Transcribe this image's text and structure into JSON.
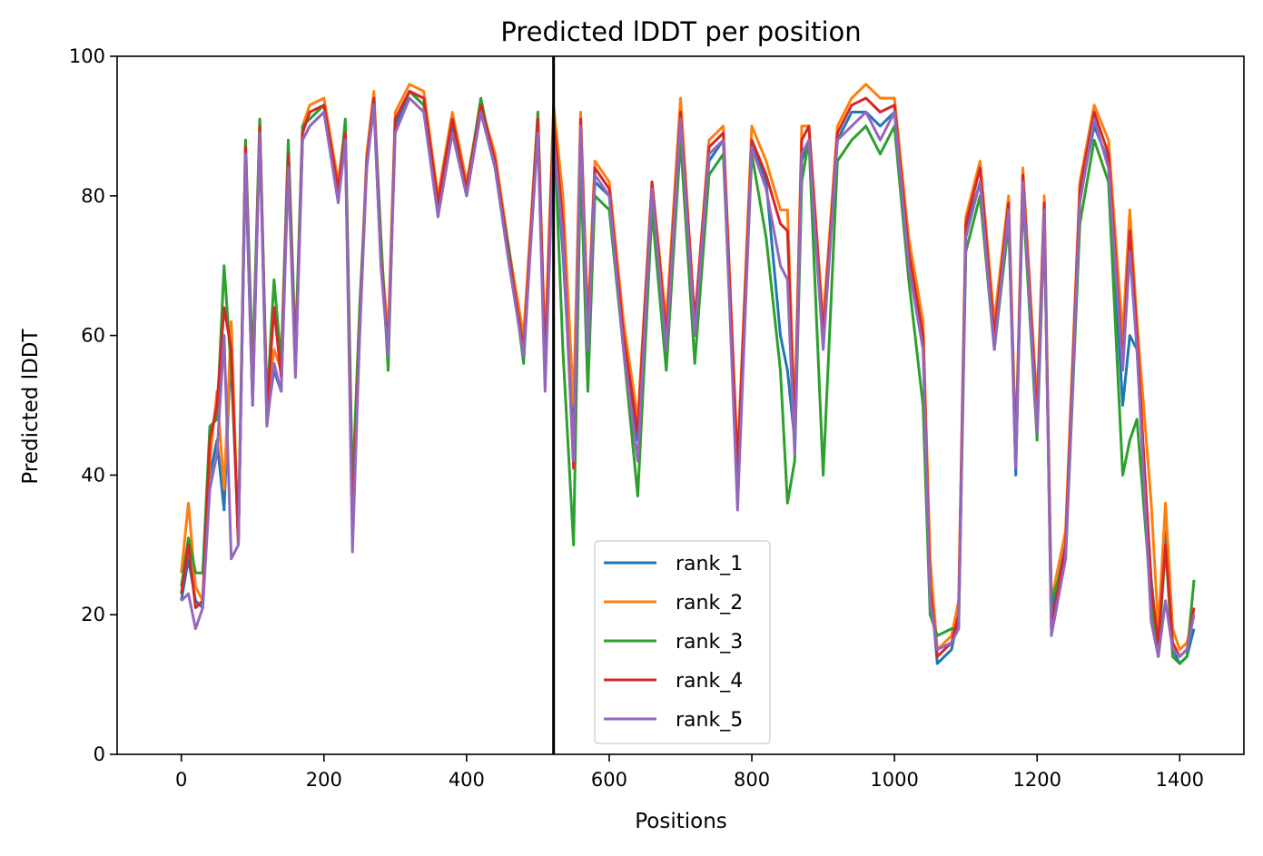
{
  "chart_data": {
    "type": "line",
    "title": "Predicted lDDT per position",
    "xlabel": "Positions",
    "ylabel": "Predicted lDDT",
    "xlim": [
      -90,
      1490
    ],
    "ylim": [
      0,
      100
    ],
    "xticks": [
      0,
      200,
      400,
      600,
      800,
      1000,
      1200,
      1400
    ],
    "yticks": [
      0,
      20,
      40,
      60,
      80,
      100
    ],
    "vline_x": 522,
    "grid": false,
    "legend_position": "lower-center",
    "series": [
      {
        "name": "rank_1",
        "color": "#1f77b4",
        "x": [
          0,
          10,
          20,
          30,
          40,
          50,
          60,
          70,
          80,
          90,
          100,
          110,
          120,
          130,
          140,
          150,
          160,
          170,
          180,
          200,
          220,
          230,
          240,
          250,
          260,
          270,
          280,
          290,
          300,
          320,
          340,
          360,
          380,
          400,
          420,
          440,
          460,
          480,
          500,
          510,
          522,
          535,
          550,
          560,
          570,
          580,
          600,
          620,
          640,
          660,
          680,
          700,
          720,
          740,
          760,
          780,
          800,
          820,
          840,
          850,
          860,
          870,
          880,
          900,
          920,
          940,
          960,
          980,
          1000,
          1020,
          1040,
          1050,
          1060,
          1080,
          1090,
          1100,
          1120,
          1140,
          1160,
          1170,
          1180,
          1200,
          1210,
          1220,
          1240,
          1260,
          1280,
          1300,
          1320,
          1330,
          1340,
          1360,
          1370,
          1380,
          1390,
          1400,
          1410,
          1420
        ],
        "y": [
          22,
          28,
          22,
          21,
          40,
          45,
          35,
          60,
          30,
          85,
          50,
          90,
          48,
          55,
          52,
          85,
          55,
          88,
          90,
          92,
          80,
          88,
          34,
          60,
          85,
          93,
          70,
          58,
          90,
          95,
          93,
          78,
          90,
          80,
          92,
          84,
          70,
          58,
          90,
          55,
          90,
          72,
          45,
          88,
          60,
          82,
          80,
          60,
          45,
          80,
          58,
          90,
          60,
          85,
          88,
          40,
          88,
          82,
          60,
          55,
          45,
          85,
          88,
          60,
          88,
          92,
          92,
          90,
          92,
          70,
          60,
          25,
          13,
          15,
          20,
          75,
          82,
          60,
          78,
          40,
          82,
          48,
          78,
          20,
          30,
          80,
          90,
          85,
          50,
          60,
          58,
          25,
          15,
          32,
          15,
          13,
          14,
          18
        ]
      },
      {
        "name": "rank_2",
        "color": "#ff7f0e",
        "x": [
          0,
          10,
          20,
          30,
          40,
          50,
          60,
          70,
          80,
          90,
          100,
          110,
          120,
          130,
          140,
          150,
          160,
          170,
          180,
          200,
          220,
          230,
          240,
          250,
          260,
          270,
          280,
          290,
          300,
          320,
          340,
          360,
          380,
          400,
          420,
          440,
          460,
          480,
          500,
          510,
          522,
          535,
          550,
          560,
          570,
          580,
          600,
          620,
          640,
          660,
          680,
          700,
          720,
          740,
          760,
          780,
          800,
          820,
          840,
          850,
          860,
          870,
          880,
          900,
          920,
          940,
          960,
          980,
          1000,
          1020,
          1040,
          1050,
          1060,
          1080,
          1090,
          1100,
          1120,
          1140,
          1160,
          1170,
          1180,
          1200,
          1210,
          1220,
          1240,
          1260,
          1280,
          1300,
          1320,
          1330,
          1340,
          1360,
          1370,
          1380,
          1390,
          1400,
          1410,
          1420
        ],
        "y": [
          26,
          36,
          24,
          22,
          42,
          52,
          38,
          62,
          30,
          88,
          52,
          91,
          50,
          58,
          55,
          86,
          56,
          90,
          93,
          94,
          82,
          90,
          35,
          62,
          86,
          95,
          72,
          60,
          92,
          96,
          95,
          80,
          92,
          82,
          93,
          86,
          72,
          60,
          92,
          58,
          93,
          80,
          50,
          92,
          62,
          85,
          82,
          62,
          48,
          82,
          62,
          94,
          62,
          88,
          90,
          42,
          90,
          85,
          78,
          78,
          48,
          90,
          90,
          62,
          90,
          94,
          96,
          94,
          94,
          74,
          62,
          28,
          15,
          17,
          22,
          77,
          85,
          62,
          80,
          44,
          84,
          50,
          80,
          22,
          32,
          82,
          93,
          88,
          60,
          78,
          62,
          36,
          18,
          36,
          18,
          15,
          16,
          20
        ]
      },
      {
        "name": "rank_3",
        "color": "#2ca02c",
        "x": [
          0,
          10,
          20,
          30,
          40,
          50,
          60,
          70,
          80,
          90,
          100,
          110,
          120,
          130,
          140,
          150,
          160,
          170,
          180,
          200,
          220,
          230,
          240,
          250,
          260,
          270,
          280,
          290,
          300,
          320,
          340,
          360,
          380,
          400,
          420,
          440,
          460,
          480,
          500,
          510,
          522,
          535,
          550,
          560,
          570,
          580,
          600,
          620,
          640,
          660,
          680,
          700,
          720,
          740,
          760,
          780,
          800,
          820,
          840,
          850,
          860,
          870,
          880,
          900,
          920,
          940,
          960,
          980,
          1000,
          1020,
          1040,
          1050,
          1060,
          1080,
          1090,
          1100,
          1120,
          1140,
          1160,
          1170,
          1180,
          1200,
          1210,
          1220,
          1240,
          1260,
          1280,
          1300,
          1320,
          1330,
          1340,
          1360,
          1370,
          1380,
          1390,
          1400,
          1410,
          1420
        ],
        "y": [
          24,
          31,
          26,
          26,
          47,
          48,
          70,
          55,
          32,
          88,
          55,
          91,
          50,
          68,
          56,
          88,
          58,
          90,
          91,
          93,
          80,
          91,
          38,
          64,
          84,
          94,
          74,
          55,
          91,
          95,
          93,
          79,
          91,
          81,
          94,
          84,
          72,
          56,
          92,
          54,
          92,
          58,
          30,
          85,
          52,
          80,
          78,
          58,
          37,
          78,
          55,
          88,
          56,
          83,
          86,
          38,
          86,
          74,
          55,
          36,
          42,
          82,
          88,
          40,
          85,
          88,
          90,
          86,
          90,
          68,
          50,
          20,
          17,
          18,
          18,
          72,
          80,
          58,
          76,
          44,
          80,
          45,
          76,
          22,
          28,
          76,
          88,
          82,
          40,
          45,
          48,
          22,
          14,
          30,
          14,
          13,
          14,
          25
        ]
      },
      {
        "name": "rank_4",
        "color": "#d62728",
        "x": [
          0,
          10,
          20,
          30,
          40,
          50,
          60,
          70,
          80,
          90,
          100,
          110,
          120,
          130,
          140,
          150,
          160,
          170,
          180,
          200,
          220,
          230,
          240,
          250,
          260,
          270,
          280,
          290,
          300,
          320,
          340,
          360,
          380,
          400,
          420,
          440,
          460,
          480,
          500,
          510,
          522,
          535,
          550,
          560,
          570,
          580,
          600,
          620,
          640,
          660,
          680,
          700,
          720,
          740,
          760,
          780,
          800,
          820,
          840,
          850,
          860,
          870,
          880,
          900,
          920,
          940,
          960,
          980,
          1000,
          1020,
          1040,
          1050,
          1060,
          1080,
          1090,
          1100,
          1120,
          1140,
          1160,
          1170,
          1180,
          1200,
          1210,
          1220,
          1240,
          1260,
          1280,
          1300,
          1320,
          1330,
          1340,
          1360,
          1370,
          1380,
          1390,
          1400,
          1410,
          1420
        ],
        "y": [
          23,
          30,
          21,
          22,
          45,
          50,
          64,
          58,
          30,
          87,
          51,
          90,
          49,
          64,
          54,
          86,
          55,
          89,
          92,
          93,
          81,
          89,
          33,
          61,
          85,
          94,
          71,
          58,
          91,
          95,
          94,
          79,
          91,
          81,
          93,
          85,
          71,
          58,
          91,
          56,
          91,
          76,
          41,
          91,
          60,
          84,
          81,
          60,
          46,
          82,
          60,
          92,
          62,
          87,
          89,
          41,
          88,
          83,
          76,
          75,
          46,
          88,
          90,
          60,
          89,
          93,
          94,
          92,
          93,
          72,
          60,
          24,
          14,
          16,
          20,
          76,
          84,
          60,
          79,
          42,
          83,
          48,
          79,
          18,
          30,
          81,
          92,
          86,
          56,
          75,
          60,
          24,
          16,
          30,
          16,
          14,
          15,
          21
        ]
      },
      {
        "name": "rank_5",
        "color": "#9467bd",
        "x": [
          0,
          10,
          20,
          30,
          40,
          50,
          60,
          70,
          80,
          90,
          100,
          110,
          120,
          130,
          140,
          150,
          160,
          170,
          180,
          200,
          220,
          230,
          240,
          250,
          260,
          270,
          280,
          290,
          300,
          320,
          340,
          360,
          380,
          400,
          420,
          440,
          460,
          480,
          500,
          510,
          522,
          535,
          550,
          560,
          570,
          580,
          600,
          620,
          640,
          660,
          680,
          700,
          720,
          740,
          760,
          780,
          800,
          820,
          840,
          850,
          860,
          870,
          880,
          900,
          920,
          940,
          960,
          980,
          1000,
          1020,
          1040,
          1050,
          1060,
          1080,
          1090,
          1100,
          1120,
          1140,
          1160,
          1170,
          1180,
          1200,
          1210,
          1220,
          1240,
          1260,
          1280,
          1300,
          1320,
          1330,
          1340,
          1360,
          1370,
          1380,
          1390,
          1400,
          1410,
          1420
        ],
        "y": [
          22,
          23,
          18,
          21,
          38,
          43,
          60,
          28,
          30,
          86,
          50,
          89,
          47,
          56,
          52,
          84,
          54,
          88,
          90,
          92,
          79,
          88,
          29,
          60,
          84,
          93,
          70,
          57,
          89,
          94,
          92,
          77,
          89,
          80,
          92,
          84,
          70,
          57,
          89,
          52,
          88,
          74,
          42,
          90,
          58,
          83,
          80,
          58,
          42,
          81,
          58,
          91,
          60,
          86,
          88,
          35,
          87,
          81,
          70,
          68,
          43,
          86,
          88,
          58,
          88,
          90,
          92,
          88,
          92,
          70,
          58,
          22,
          15,
          16,
          18,
          74,
          82,
          58,
          78,
          41,
          82,
          46,
          78,
          17,
          28,
          79,
          91,
          84,
          55,
          72,
          58,
          19,
          14,
          22,
          15,
          14,
          15,
          20
        ]
      }
    ]
  }
}
